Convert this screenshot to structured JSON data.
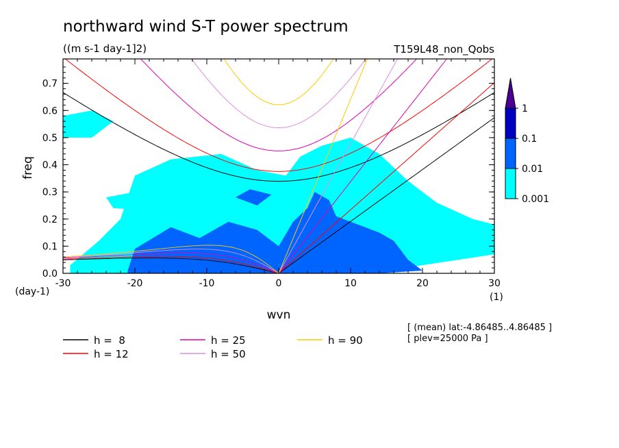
{
  "chart_data": {
    "type": "heatmap",
    "title": "northward wind S-T power spectrum",
    "units": "((m s-1 day-1]2)",
    "run_label": "T159L48_non_Qobs",
    "xlabel": "wvn",
    "ylabel": "freq",
    "x_unit_label": "(1)",
    "y_unit_label": "(day-1)",
    "xlim": [
      -30,
      30
    ],
    "ylim": [
      0,
      0.79
    ],
    "x_ticks": [
      -30,
      -20,
      -10,
      0,
      10,
      20,
      30
    ],
    "x_tick_labels": [
      "-30",
      "-20",
      "-10",
      "0",
      "10",
      "20",
      "30"
    ],
    "y_ticks": [
      0,
      0.1,
      0.2,
      0.3,
      0.4,
      0.5,
      0.6,
      0.7
    ],
    "y_tick_labels": [
      "0.0",
      "0.1",
      "0.2",
      "0.3",
      "0.4",
      "0.5",
      "0.6",
      "0.7"
    ],
    "colorbar": {
      "levels": [
        0.001,
        0.01,
        0.1,
        1
      ],
      "labels": [
        "0.001",
        "0.01",
        "0.1",
        "1"
      ],
      "colors": [
        "#00ffff",
        "#0064ff",
        "#0000c0",
        "#4a0090"
      ]
    },
    "regions": [
      {
        "level": 0.001,
        "polygon": [
          [
            -29,
            0.03
          ],
          [
            -25,
            0.12
          ],
          [
            -22,
            0.2
          ],
          [
            -20,
            0.36
          ],
          [
            -15,
            0.42
          ],
          [
            -8,
            0.44
          ],
          [
            -3,
            0.38
          ],
          [
            1,
            0.36
          ],
          [
            3,
            0.43
          ],
          [
            6,
            0.47
          ],
          [
            10,
            0.5
          ],
          [
            14,
            0.44
          ],
          [
            18,
            0.34
          ],
          [
            22,
            0.26
          ],
          [
            27,
            0.2
          ],
          [
            30,
            0.18
          ],
          [
            30,
            0.07
          ],
          [
            25,
            0.05
          ],
          [
            20,
            0.03
          ],
          [
            15,
            0.01
          ],
          [
            10,
            0.0
          ],
          [
            0,
            0.0
          ],
          [
            -10,
            0.0
          ],
          [
            -20,
            0.0
          ],
          [
            -29,
            0.0
          ]
        ]
      },
      {
        "level": 0.001,
        "polygon": [
          [
            -30,
            0.58
          ],
          [
            -26,
            0.6
          ],
          [
            -23,
            0.56
          ],
          [
            -26,
            0.5
          ],
          [
            -30,
            0.5
          ]
        ]
      },
      {
        "level": 0.001,
        "polygon": [
          [
            -24,
            0.28
          ],
          [
            -18,
            0.31
          ],
          [
            -13,
            0.27
          ],
          [
            -17,
            0.23
          ],
          [
            -23,
            0.24
          ]
        ]
      },
      {
        "level": 0.01,
        "polygon": [
          [
            -21,
            0.01
          ],
          [
            -20,
            0.09
          ],
          [
            -15,
            0.17
          ],
          [
            -11,
            0.13
          ],
          [
            -7,
            0.19
          ],
          [
            -3,
            0.16
          ],
          [
            0,
            0.1
          ],
          [
            2,
            0.19
          ],
          [
            4,
            0.24
          ],
          [
            5,
            0.3
          ],
          [
            7,
            0.27
          ],
          [
            8,
            0.21
          ],
          [
            12,
            0.17
          ],
          [
            14,
            0.15
          ],
          [
            16,
            0.12
          ],
          [
            18,
            0.05
          ],
          [
            20,
            0.01
          ],
          [
            14,
            0.0
          ],
          [
            0,
            0.0
          ],
          [
            -12,
            0.0
          ],
          [
            -21,
            0.0
          ]
        ]
      },
      {
        "level": 0.01,
        "polygon": [
          [
            -6,
            0.28
          ],
          [
            -4,
            0.31
          ],
          [
            -1,
            0.29
          ],
          [
            -3,
            0.25
          ]
        ]
      }
    ],
    "dispersion_curves": [
      {
        "name": "h =  8",
        "color": "#000000"
      },
      {
        "name": "h = 12",
        "color": "#ff0000"
      },
      {
        "name": "h = 25",
        "color": "#e000b0"
      },
      {
        "name": "h = 50",
        "color": "#e08ce0"
      },
      {
        "name": "h = 90",
        "color": "#ffc800"
      }
    ],
    "annotations": [
      "[ (mean) lat:-4.86485..4.86485 ]",
      "[ plev=25000 Pa ]"
    ],
    "legend_position": "bottom-left"
  }
}
